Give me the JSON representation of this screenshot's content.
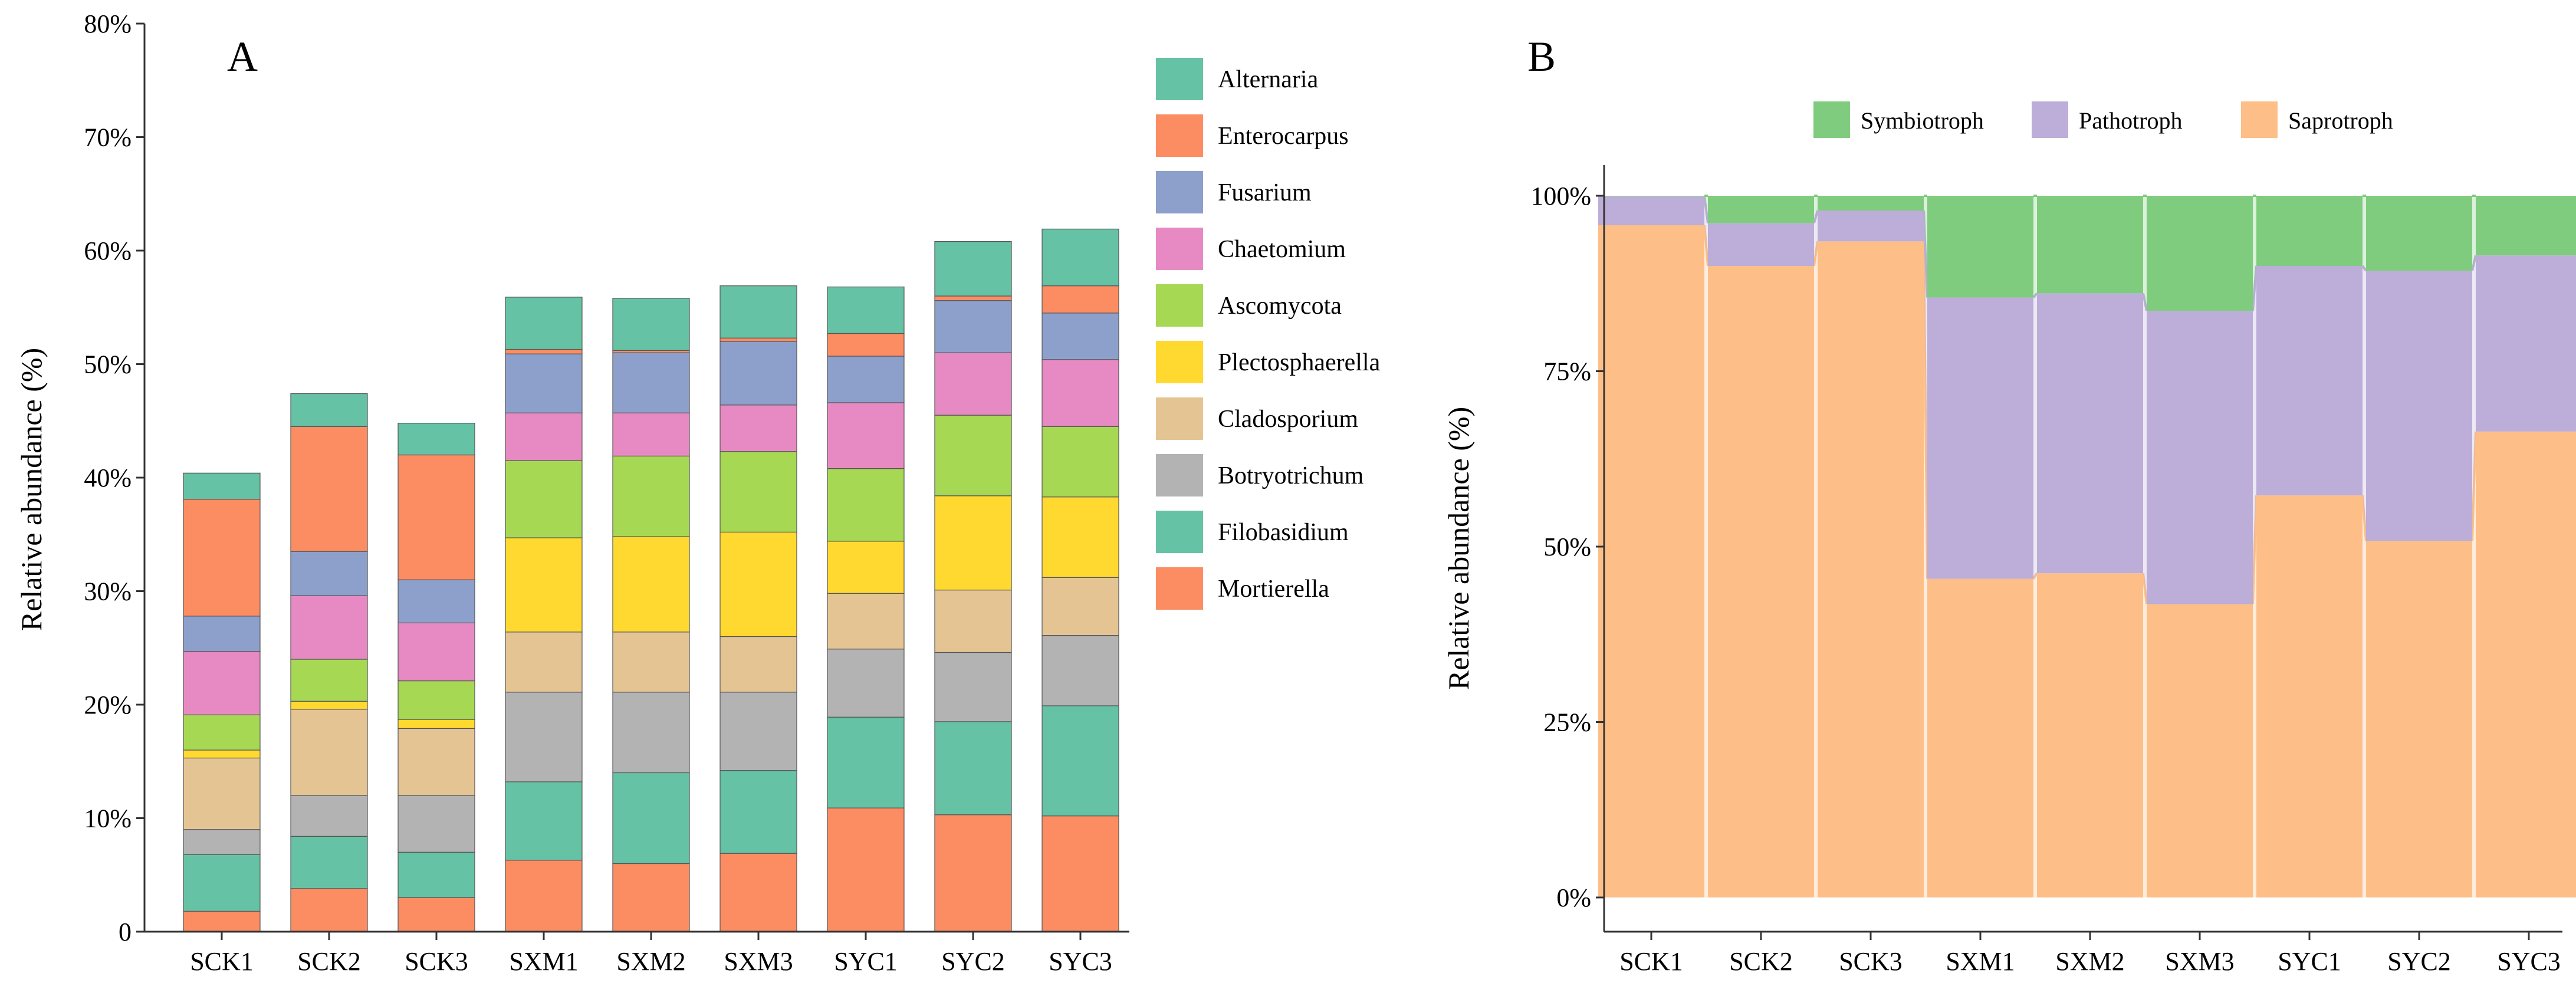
{
  "chart_data": [
    {
      "panel": "A",
      "type": "bar",
      "stacked": true,
      "title": "",
      "xlabel": "",
      "ylabel": "Relative abundance (%)",
      "ylim": [
        0,
        80
      ],
      "yticks": [
        0,
        10,
        20,
        30,
        40,
        50,
        60,
        70,
        80
      ],
      "ytick_labels": [
        "0",
        "10%",
        "20%",
        "30%",
        "40%",
        "50%",
        "60%",
        "70%",
        "80%"
      ],
      "grid": false,
      "legend_position": "right",
      "categories": [
        "SCK1",
        "SCK2",
        "SCK3",
        "SXM1",
        "SXM2",
        "SXM3",
        "SYC1",
        "SYC2",
        "SYC3"
      ],
      "series": [
        {
          "name": "Mortierella",
          "color": "#FC8D62",
          "values": [
            1.8,
            3.8,
            3.0,
            6.3,
            6.0,
            6.9,
            10.9,
            10.3,
            10.2
          ]
        },
        {
          "name": "Filobasidium",
          "color": "#66C2A5",
          "values": [
            5.0,
            4.6,
            4.0,
            6.9,
            8.0,
            7.3,
            8.0,
            8.2,
            9.7
          ]
        },
        {
          "name": "Botryotrichum",
          "color": "#B3B3B3",
          "values": [
            2.2,
            3.6,
            5.0,
            7.9,
            7.1,
            6.9,
            6.0,
            6.1,
            6.2
          ]
        },
        {
          "name": "Cladosporium",
          "color": "#E5C494",
          "values": [
            6.3,
            7.6,
            5.9,
            5.3,
            5.3,
            4.9,
            4.9,
            5.5,
            5.1
          ]
        },
        {
          "name": "Plectosphaerella",
          "color": "#FFD92F",
          "values": [
            0.7,
            0.7,
            0.8,
            8.3,
            8.4,
            9.2,
            4.6,
            8.3,
            7.1
          ]
        },
        {
          "name": "Ascomycota",
          "color": "#A6D854",
          "values": [
            3.1,
            3.7,
            3.4,
            6.8,
            7.1,
            7.1,
            6.4,
            7.1,
            6.2
          ]
        },
        {
          "name": "Chaetomium",
          "color": "#E78AC3",
          "values": [
            5.6,
            5.6,
            5.1,
            4.2,
            3.8,
            4.1,
            5.8,
            5.5,
            5.9
          ]
        },
        {
          "name": "Fusarium",
          "color": "#8DA0CB",
          "values": [
            3.1,
            3.9,
            3.8,
            5.2,
            5.3,
            5.6,
            4.1,
            4.6,
            4.1
          ]
        },
        {
          "name": "Enterocarpus",
          "color": "#FC8D62",
          "values": [
            10.3,
            11.0,
            11.0,
            0.4,
            0.2,
            0.3,
            2.0,
            0.4,
            2.4
          ]
        },
        {
          "name": "Alternaria",
          "color": "#66C2A5",
          "values": [
            2.3,
            2.9,
            2.8,
            4.6,
            4.6,
            4.6,
            4.1,
            4.8,
            5.0
          ]
        }
      ],
      "legend_order": [
        "Alternaria",
        "Enterocarpus",
        "Fusarium",
        "Chaetomium",
        "Ascomycota",
        "Plectosphaerella",
        "Cladosporium",
        "Botryotrichum",
        "Filobasidium",
        "Mortierella"
      ]
    },
    {
      "panel": "B",
      "type": "bar",
      "stacked": true,
      "percent": true,
      "title": "",
      "xlabel": "",
      "ylabel": "Relative abundance (%)",
      "ylim": [
        0,
        100
      ],
      "yticks": [
        0,
        25,
        50,
        75,
        100
      ],
      "ytick_labels": [
        "0%",
        "25%",
        "50%",
        "75%",
        "100%"
      ],
      "grid": false,
      "legend_position": "top",
      "categories": [
        "SCK1",
        "SCK2",
        "SCK3",
        "SXM1",
        "SXM2",
        "SXM3",
        "SYC1",
        "SYC2",
        "SYC3"
      ],
      "series": [
        {
          "name": "Saprotroph",
          "color": "#FDBF87",
          "values": [
            95.8,
            90.0,
            93.5,
            45.4,
            46.2,
            41.8,
            57.3,
            50.8,
            66.4
          ]
        },
        {
          "name": "Pathotroph",
          "color": "#BCADD9",
          "values": [
            4.1,
            6.1,
            4.4,
            40.1,
            39.9,
            41.8,
            32.7,
            38.5,
            25.1
          ]
        },
        {
          "name": "Symbiotroph",
          "color": "#7FCC7F",
          "values": [
            0.1,
            3.9,
            2.1,
            14.5,
            13.9,
            16.4,
            10.0,
            10.7,
            8.5
          ]
        }
      ],
      "legend_order": [
        "Symbiotroph",
        "Pathotroph",
        "Saprotroph"
      ]
    }
  ],
  "panel_labels": {
    "a": "A",
    "b": "B"
  }
}
